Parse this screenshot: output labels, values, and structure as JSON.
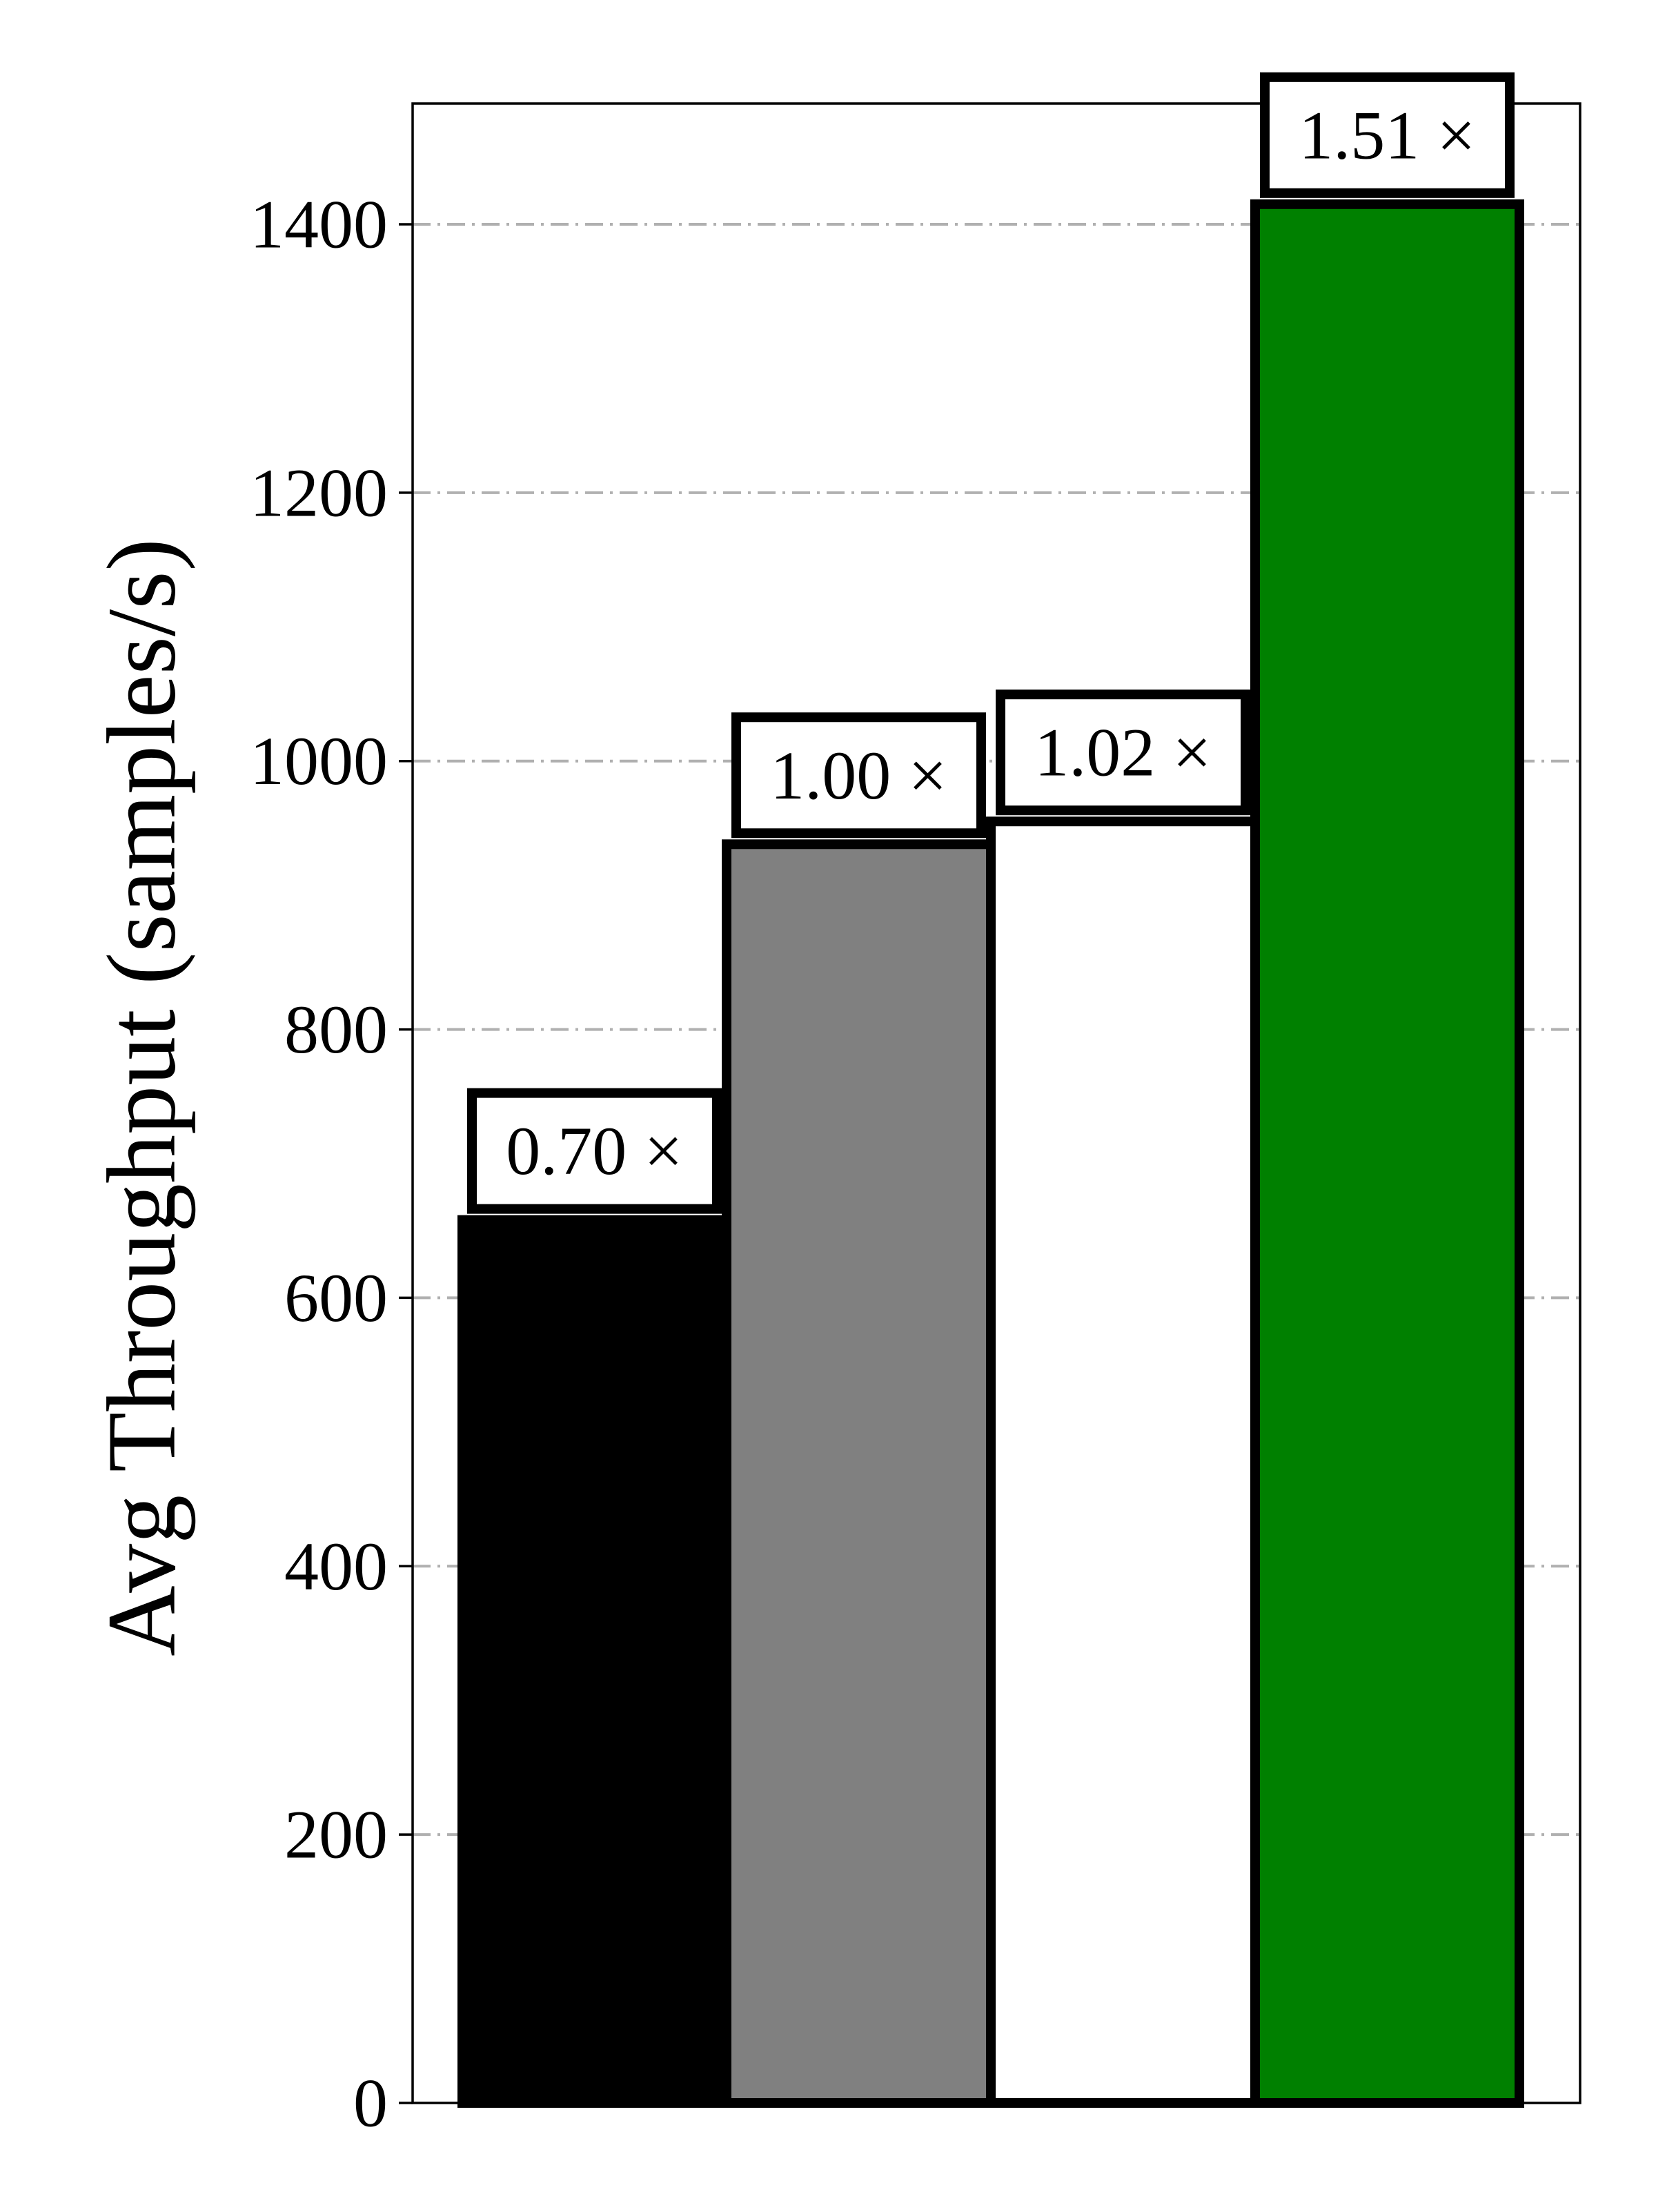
{
  "chart_data": {
    "type": "bar",
    "title": "",
    "xlabel": "",
    "ylabel": "Avg Throughput (samples/s)",
    "ylim": [
      0,
      1490
    ],
    "yticks": [
      0,
      200,
      400,
      600,
      800,
      1000,
      1200,
      1400
    ],
    "ytick_labels": [
      "0",
      "200",
      "400",
      "600",
      "800",
      "1000",
      "1200",
      "1400"
    ],
    "grid": "horizontal dash-dot",
    "legend": "none",
    "series": [
      {
        "values": [
          658,
          938,
          955,
          1415
        ],
        "colors": [
          "#000000",
          "#808080",
          "#ffffff",
          "#008000"
        ],
        "data_labels": [
          "0.70 ×",
          "1.00 ×",
          "1.02 ×",
          "1.51 ×"
        ]
      }
    ]
  }
}
